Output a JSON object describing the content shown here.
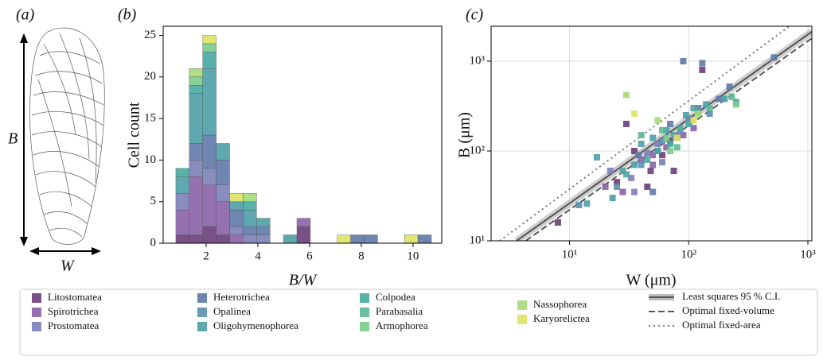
{
  "illustration": {
    "label": "(a)",
    "height_label": "B",
    "width_label": "W"
  },
  "chart_data": [
    {
      "type": "histogram",
      "panel_label": "(b)",
      "stacked": true,
      "ylabel": "Cell count",
      "xlabel": "B/W",
      "bins": [
        0.83,
        1.35,
        1.87,
        2.39,
        2.91,
        3.43,
        3.95,
        4.47,
        4.99,
        5.51,
        6.03,
        6.55,
        7.07,
        7.59,
        8.11,
        8.63,
        9.15,
        9.67,
        10.19,
        10.71,
        11.23
      ],
      "xlim": [
        0.34,
        11.11
      ],
      "ylim": [
        0,
        26.1
      ],
      "xticks": [
        2,
        4,
        6,
        8,
        10
      ],
      "yticks": [
        0,
        5,
        10,
        15,
        20,
        25
      ],
      "series": [
        {
          "name": "Litostomatea",
          "color": "#6a3d7a",
          "values": [
            1,
            1,
            2,
            1,
            0,
            0,
            0,
            0,
            0,
            2,
            0,
            0,
            0,
            0,
            0,
            0,
            0,
            0,
            0,
            0
          ]
        },
        {
          "name": "Spirotrichea",
          "color": "#8a62a8",
          "values": [
            3,
            7,
            5,
            4,
            1,
            0,
            0,
            0,
            0,
            1,
            0,
            0,
            0,
            0,
            0,
            0,
            0,
            0,
            0,
            0
          ]
        },
        {
          "name": "Prostomatea",
          "color": "#7b7fb8",
          "values": [
            2,
            2,
            2,
            2,
            1,
            1,
            1,
            0,
            0,
            0,
            0,
            0,
            0,
            0,
            0,
            0,
            0,
            0,
            0,
            0
          ]
        },
        {
          "name": "Heterotrichea",
          "color": "#5e79a8",
          "values": [
            0,
            2,
            4,
            3,
            2,
            1,
            1,
            0,
            0,
            0,
            0,
            0,
            0,
            1,
            1,
            0,
            0,
            0,
            1,
            0
          ]
        },
        {
          "name": "Opalinea",
          "color": "#5b8fad",
          "values": [
            0,
            0,
            0,
            0,
            0,
            0,
            0,
            0,
            0,
            0,
            0,
            0,
            0,
            0,
            0,
            0,
            0,
            0,
            0,
            0
          ]
        },
        {
          "name": "Oligohymenophorea",
          "color": "#4e9ea6",
          "values": [
            2,
            6,
            8,
            2,
            1,
            2,
            1,
            0,
            1,
            0,
            0,
            0,
            0,
            0,
            0,
            0,
            0,
            0,
            0,
            0
          ]
        },
        {
          "name": "Colpodea",
          "color": "#47aaa0",
          "values": [
            1,
            1,
            2,
            0,
            0,
            1,
            0,
            0,
            0,
            0,
            0,
            0,
            0,
            0,
            0,
            0,
            0,
            0,
            0,
            0
          ]
        },
        {
          "name": "Parabasalia",
          "color": "#5cb892",
          "values": [
            0,
            0,
            0,
            0,
            0,
            0,
            0,
            0,
            0,
            0,
            0,
            0,
            0,
            0,
            0,
            0,
            0,
            0,
            0,
            0
          ]
        },
        {
          "name": "Armophorea",
          "color": "#7bcc8a",
          "values": [
            0,
            1,
            1,
            0,
            0,
            0,
            0,
            0,
            0,
            0,
            0,
            0,
            0,
            0,
            0,
            0,
            0,
            0,
            0,
            0
          ]
        },
        {
          "name": "Nassophorea",
          "color": "#a6db77",
          "values": [
            0,
            1,
            0,
            0,
            0,
            1,
            0,
            0,
            0,
            0,
            0,
            0,
            0,
            0,
            0,
            0,
            0,
            0,
            0,
            0
          ]
        },
        {
          "name": "Karyorelictea",
          "color": "#dde363",
          "values": [
            0,
            0,
            1,
            0,
            1,
            0,
            0,
            0,
            0,
            0,
            0,
            0,
            1,
            0,
            0,
            0,
            0,
            1,
            0,
            0
          ]
        }
      ]
    },
    {
      "type": "scatter",
      "panel_label": "(c)",
      "log_x": true,
      "log_y": true,
      "grid": true,
      "ylabel": "B (μm)",
      "xlabel": "W (μm)",
      "xlim": [
        2.2,
        1080
      ],
      "ylim": [
        10,
        2450
      ],
      "xticks": [
        {
          "value": 10,
          "label": "10¹"
        },
        {
          "value": 100,
          "label": "10²"
        },
        {
          "value": 1000,
          "label": "10³"
        }
      ],
      "yticks": [
        {
          "value": 10,
          "label": "10¹"
        },
        {
          "value": 100,
          "label": "10²"
        },
        {
          "value": 1000,
          "label": "10³"
        }
      ],
      "series": [
        {
          "name": "Litostomatea",
          "color": "#6a3d7a",
          "x": [
            8,
            25,
            30,
            45,
            48,
            55,
            60,
            70,
            75,
            130,
            35
          ],
          "values": [
            16,
            45,
            200,
            40,
            60,
            100,
            90,
            130,
            60,
            800,
            100
          ]
        },
        {
          "name": "Spirotrichea",
          "color": "#8a62a8",
          "x": [
            20,
            28,
            40,
            50,
            65,
            80,
            90,
            110,
            50
          ],
          "values": [
            40,
            35,
            80,
            90,
            110,
            140,
            150,
            180,
            70
          ]
        },
        {
          "name": "Prostomatea",
          "color": "#7b7fb8",
          "x": [
            22,
            33,
            45,
            55,
            60,
            85,
            100,
            35
          ],
          "values": [
            60,
            50,
            95,
            120,
            75,
            160,
            230,
            35
          ]
        },
        {
          "name": "Heterotrichea",
          "color": "#5e79a8",
          "x": [
            50,
            90,
            120,
            130,
            180,
            220,
            520,
            38,
            70
          ],
          "values": [
            35,
            1000,
            300,
            950,
            380,
            520,
            1100,
            90,
            200
          ]
        },
        {
          "name": "Opalinea",
          "color": "#5b8fad",
          "x": [
            12,
            25,
            40,
            60,
            150
          ],
          "values": [
            25,
            40,
            70,
            130,
            260
          ]
        },
        {
          "name": "Oligohymenophorea",
          "color": "#4e9ea6",
          "x": [
            14,
            17,
            23,
            28,
            35,
            40,
            50,
            65,
            75,
            95,
            110,
            140,
            200,
            250
          ],
          "values": [
            26,
            85,
            30,
            60,
            70,
            120,
            140,
            170,
            150,
            250,
            300,
            330,
            380,
            350
          ]
        },
        {
          "name": "Colpodea",
          "color": "#47aaa0",
          "x": [
            30,
            45,
            55,
            70,
            85,
            100,
            120
          ],
          "values": [
            55,
            80,
            100,
            120,
            180,
            200,
            270
          ]
        },
        {
          "name": "Parabasalia",
          "color": "#5cb892",
          "x": [
            40,
            60,
            80,
            150,
            230
          ],
          "values": [
            150,
            170,
            110,
            300,
            400
          ]
        },
        {
          "name": "Armophorea",
          "color": "#7bcc8a",
          "x": [
            65,
            70,
            250
          ],
          "values": [
            140,
            100,
            330
          ]
        },
        {
          "name": "Nassophorea",
          "color": "#a6db77",
          "x": [
            30,
            55,
            120
          ],
          "values": [
            420,
            220,
            260
          ]
        },
        {
          "name": "Karyorelictea",
          "color": "#dde363",
          "x": [
            35,
            80,
            110
          ],
          "values": [
            260,
            140,
            220
          ]
        }
      ],
      "fits": [
        {
          "name": "Least squares 95 % C.I.",
          "style": "band",
          "color": "#555555",
          "x": [
            3.6,
            1080
          ],
          "values": [
            10,
            2130
          ]
        },
        {
          "name": "Optimal fixed-volume",
          "style": "dashed",
          "color": "#555555",
          "x": [
            4.3,
            1080
          ],
          "values": [
            10,
            1800
          ]
        },
        {
          "name": "Optimal fixed-area",
          "style": "dotted",
          "color": "#777777",
          "x": [
            2.6,
            700
          ],
          "values": [
            10,
            2450
          ]
        }
      ]
    }
  ]
}
